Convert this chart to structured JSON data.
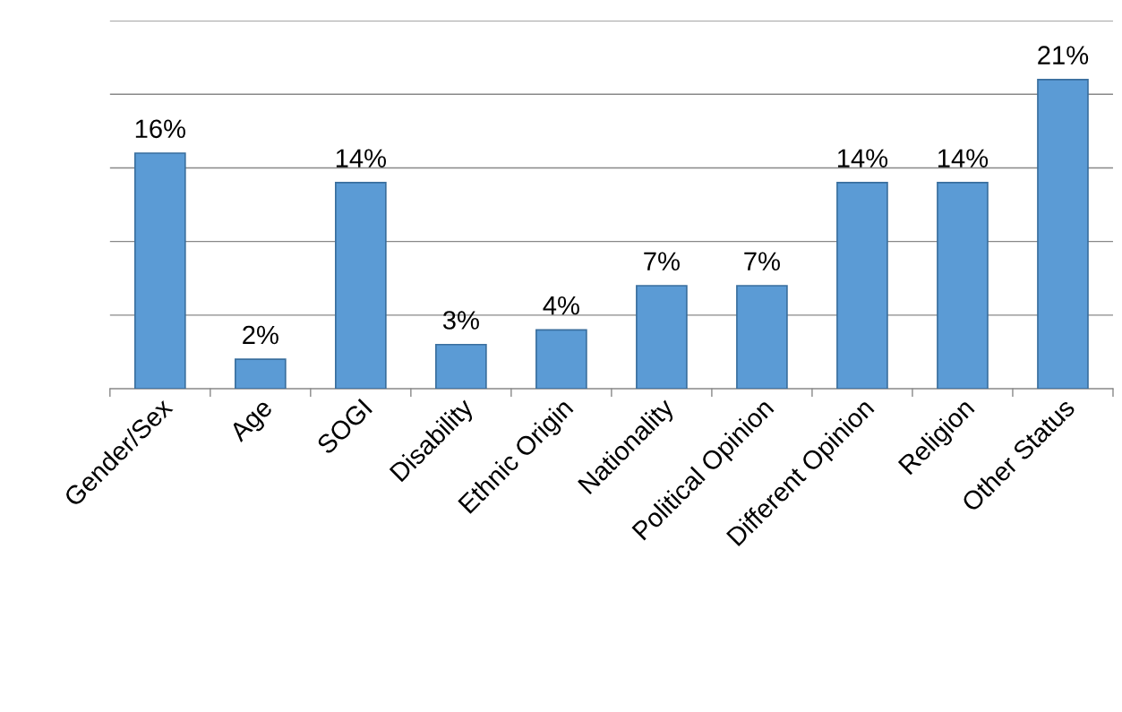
{
  "chart_data": {
    "type": "bar",
    "categories": [
      "Gender/Sex",
      "Age",
      "SOGI",
      "Disability",
      "Ethnic Origin",
      "Nationality",
      "Political Opinion",
      "Different Opinion",
      "Religion",
      "Other Status"
    ],
    "values": [
      16,
      2,
      14,
      3,
      4,
      7,
      7,
      14,
      14,
      21
    ],
    "value_labels": [
      "16%",
      "2%",
      "14%",
      "3%",
      "4%",
      "7%",
      "7%",
      "14%",
      "14%",
      "21%"
    ],
    "color": "#5b9bd5",
    "ylim": [
      0,
      25
    ],
    "yticks": [
      {
        "value": 0,
        "label": null
      },
      {
        "value": 5,
        "label": null
      },
      {
        "value": 10,
        "label": null
      },
      {
        "value": 15,
        "label": null
      },
      {
        "value": 20,
        "label": null
      },
      {
        "value": 25,
        "label": null
      }
    ],
    "tick_labels": "x",
    "grid": "y",
    "legend": false
  }
}
